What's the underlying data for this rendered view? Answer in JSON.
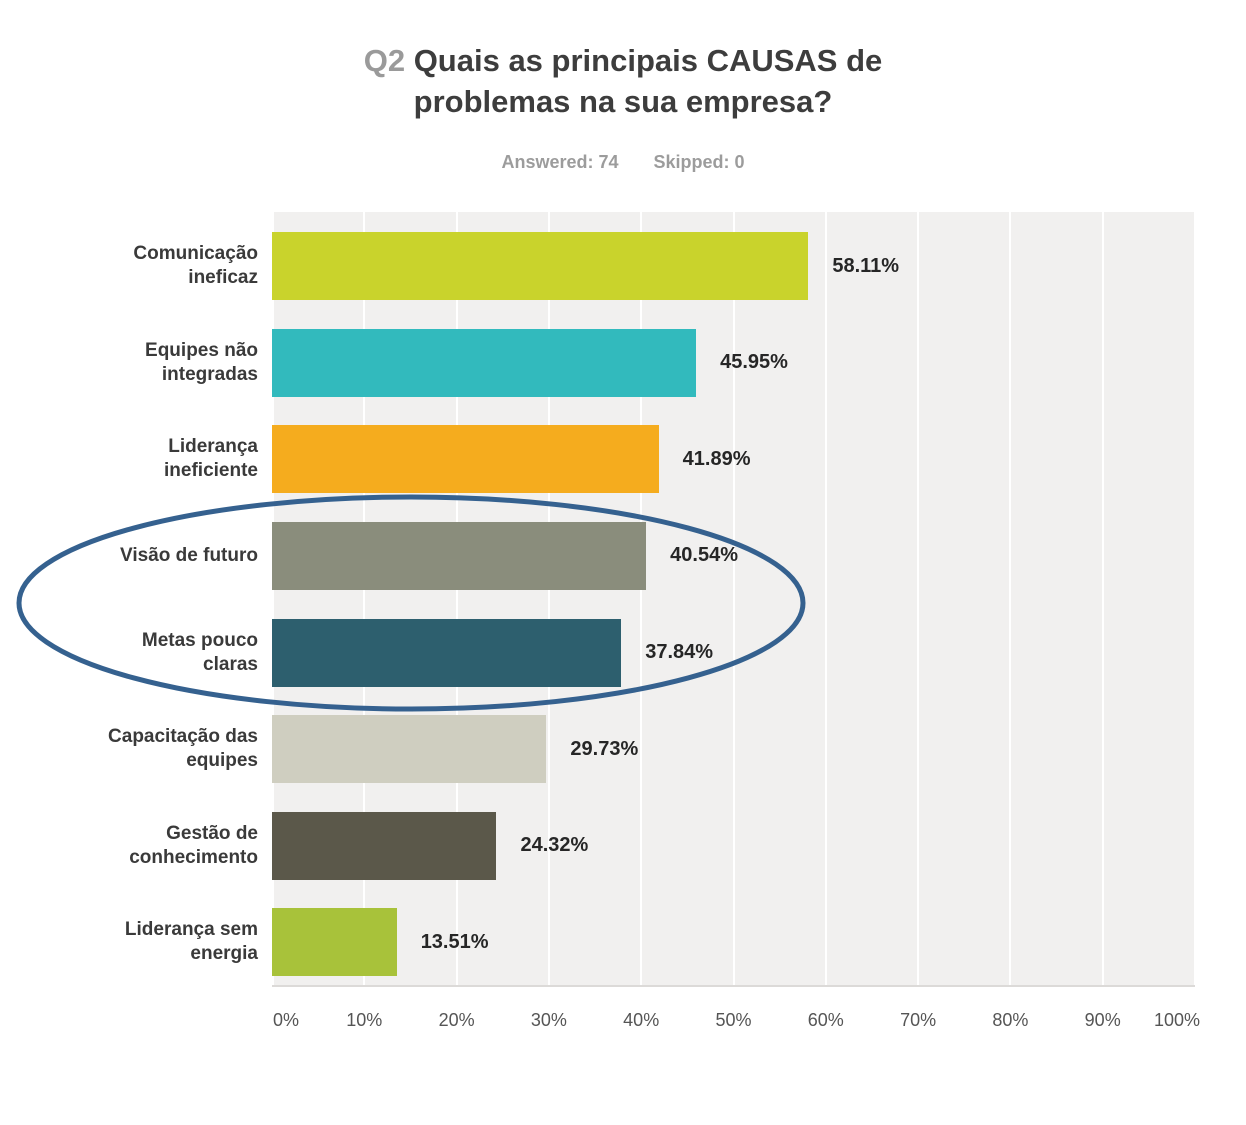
{
  "header": {
    "question_number": "Q2",
    "title": "Quais as principais CAUSAS de problemas na sua empresa?",
    "answered_label": "Answered: 74",
    "skipped_label": "Skipped: 0"
  },
  "chart_data": {
    "type": "bar",
    "orientation": "horizontal",
    "title": "Q2 Quais as principais CAUSAS de problemas na sua empresa?",
    "categories": [
      "Comunicação ineficaz",
      "Equipes não integradas",
      "Liderança ineficiente",
      "Visão de futuro",
      "Metas pouco claras",
      "Capacitação das equipes",
      "Gestão de conhecimento",
      "Liderança sem energia"
    ],
    "values": [
      58.11,
      45.95,
      41.89,
      40.54,
      37.84,
      29.73,
      24.32,
      13.51
    ],
    "value_labels": [
      "58.11%",
      "45.95%",
      "41.89%",
      "40.54%",
      "37.84%",
      "29.73%",
      "24.32%",
      "13.51%"
    ],
    "bar_colors": [
      "#c9d32c",
      "#32babd",
      "#f5ac1e",
      "#8a8d7c",
      "#2d5f6e",
      "#cfcec0",
      "#5b584a",
      "#a8c23a"
    ],
    "x_ticks": [
      "0%",
      "10%",
      "20%",
      "30%",
      "40%",
      "50%",
      "60%",
      "70%",
      "80%",
      "90%",
      "100%"
    ],
    "xlim": [
      0,
      100
    ],
    "grid": true,
    "legend": false,
    "plot_background": "#f1f0ef",
    "annotation": {
      "shape": "ellipse",
      "color": "#35618f",
      "highlights": [
        "Visão de futuro",
        "Metas pouco claras"
      ]
    }
  }
}
